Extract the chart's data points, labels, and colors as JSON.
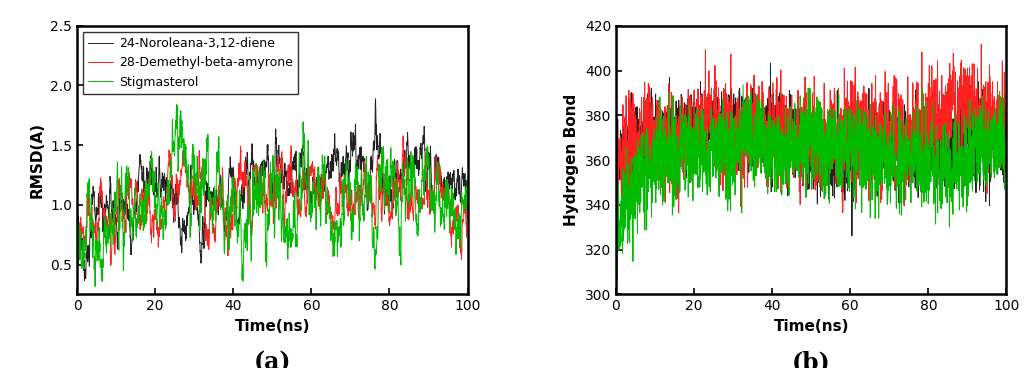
{
  "legend_labels": [
    "24-Noroleana-3,12-diene",
    "28-Demethyl-beta-amyrone",
    "Stigmasterol"
  ],
  "colors": [
    "#222222",
    "#ff2020",
    "#00bb00"
  ],
  "xlabel": "Time(ns)",
  "ylabel_a": "RMSD(A)",
  "ylabel_b": "Hydrogen Bond",
  "label_a": "(a)",
  "label_b": "(b)",
  "xlim": [
    0,
    100
  ],
  "ylim_a": [
    0.25,
    2.5
  ],
  "ylim_b": [
    300,
    420
  ],
  "yticks_a": [
    0.5,
    1.0,
    1.5,
    2.0,
    2.5
  ],
  "yticks_b": [
    300,
    320,
    340,
    360,
    380,
    400,
    420
  ],
  "xticks": [
    0,
    20,
    40,
    60,
    80,
    100
  ],
  "n_points": 2000,
  "seed": 42,
  "linewidth": 0.7,
  "title_fontsize": 17,
  "label_fontsize": 11,
  "tick_fontsize": 10,
  "legend_fontsize": 9
}
